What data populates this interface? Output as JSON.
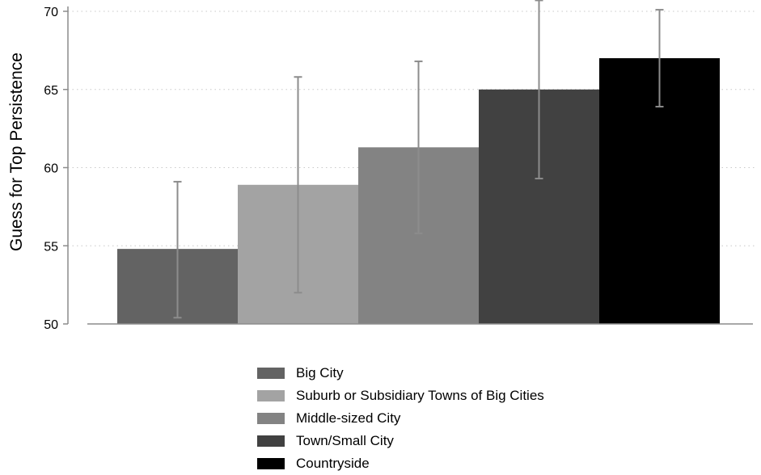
{
  "chart_data": {
    "type": "bar",
    "title": "",
    "xlabel": "",
    "ylabel": "Guess for Top Persistence",
    "ylim": [
      50,
      70
    ],
    "yticks": [
      50,
      55,
      60,
      65,
      70
    ],
    "grid": "horizontal-dotted",
    "legend_position": "bottom",
    "series": [
      {
        "name": "Big City",
        "value": 54.8,
        "ci_low": 50.4,
        "ci_high": 59.1,
        "color": "#636363"
      },
      {
        "name": "Suburb or Subsidiary Towns of Big Cities",
        "value": 58.9,
        "ci_low": 52.0,
        "ci_high": 65.8,
        "color": "#a3a3a3"
      },
      {
        "name": "Middle-sized City",
        "value": 61.3,
        "ci_low": 55.8,
        "ci_high": 66.8,
        "color": "#838383"
      },
      {
        "name": "Town/Small City",
        "value": 65.0,
        "ci_low": 59.3,
        "ci_high": 70.7,
        "color": "#414141"
      },
      {
        "name": "Countryside",
        "value": 67.0,
        "ci_low": 63.9,
        "ci_high": 70.1,
        "color": "#000000"
      }
    ],
    "error_bar_color": "#8c8c8c"
  }
}
